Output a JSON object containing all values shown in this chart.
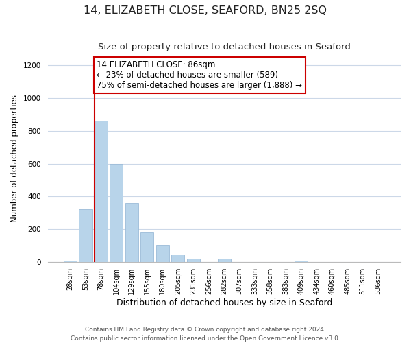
{
  "title": "14, ELIZABETH CLOSE, SEAFORD, BN25 2SQ",
  "subtitle": "Size of property relative to detached houses in Seaford",
  "xlabel": "Distribution of detached houses by size in Seaford",
  "ylabel": "Number of detached properties",
  "bar_labels": [
    "28sqm",
    "53sqm",
    "78sqm",
    "104sqm",
    "129sqm",
    "155sqm",
    "180sqm",
    "205sqm",
    "231sqm",
    "256sqm",
    "282sqm",
    "307sqm",
    "333sqm",
    "358sqm",
    "383sqm",
    "409sqm",
    "434sqm",
    "460sqm",
    "485sqm",
    "511sqm",
    "536sqm"
  ],
  "bar_values": [
    10,
    320,
    860,
    600,
    360,
    185,
    105,
    45,
    20,
    0,
    20,
    0,
    0,
    0,
    0,
    10,
    0,
    0,
    0,
    0,
    0
  ],
  "bar_color": "#b8d4ea",
  "bar_edge_color": "#9bbbd8",
  "vline_x": 2,
  "vline_color": "#cc0000",
  "annotation_line1": "14 ELIZABETH CLOSE: 86sqm",
  "annotation_line2": "← 23% of detached houses are smaller (589)",
  "annotation_line3": "75% of semi-detached houses are larger (1,888) →",
  "annotation_box_edgecolor": "#cc0000",
  "annotation_box_facecolor": "#ffffff",
  "ylim": [
    0,
    1260
  ],
  "yticks": [
    0,
    200,
    400,
    600,
    800,
    1000,
    1200
  ],
  "footer1": "Contains HM Land Registry data © Crown copyright and database right 2024.",
  "footer2": "Contains public sector information licensed under the Open Government Licence v3.0.",
  "title_fontsize": 11.5,
  "subtitle_fontsize": 9.5,
  "annotation_fontsize": 8.5,
  "xlabel_fontsize": 9,
  "ylabel_fontsize": 8.5,
  "tick_fontsize": 7,
  "footer_fontsize": 6.5
}
